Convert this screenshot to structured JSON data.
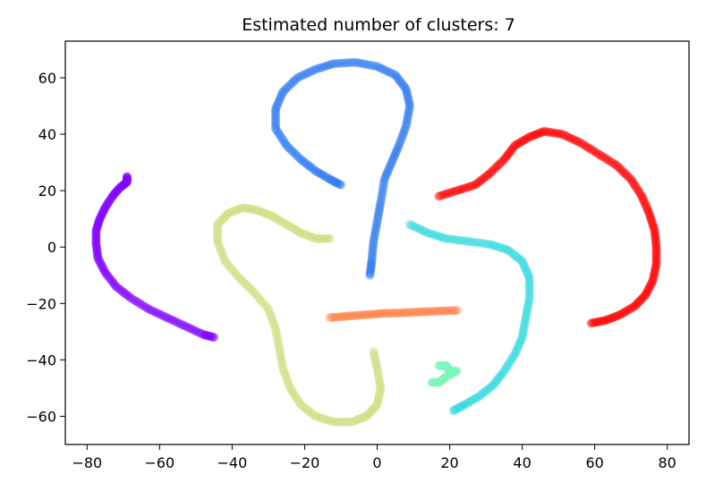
{
  "chart_data": {
    "type": "scatter",
    "title": "Estimated number of clusters: 7",
    "xlabel": "",
    "ylabel": "",
    "xlim": [
      -86,
      86
    ],
    "ylim": [
      -70,
      73
    ],
    "xticks": [
      -80,
      -60,
      -40,
      -20,
      0,
      20,
      40,
      60,
      80
    ],
    "yticks": [
      60,
      40,
      20,
      0,
      -20,
      -40,
      -60
    ],
    "xtick_labels": [
      "−80",
      "−60",
      "−40",
      "−20",
      "0",
      "20",
      "40",
      "60",
      "80"
    ],
    "ytick_labels": [
      "60",
      "40",
      "20",
      "0",
      "−20",
      "−40",
      "−60"
    ],
    "grid": false,
    "series": [
      {
        "color": "#8000ff",
        "points": [
          [
            -69,
            25
          ],
          [
            -69,
            23
          ],
          [
            -71,
            21
          ],
          [
            -73,
            18
          ],
          [
            -75,
            14
          ],
          [
            -76.5,
            10
          ],
          [
            -77.5,
            6
          ],
          [
            -77.5,
            1
          ],
          [
            -77,
            -4
          ],
          [
            -75,
            -9
          ],
          [
            -72,
            -14
          ],
          [
            -68,
            -18
          ],
          [
            -63,
            -22
          ],
          [
            -58,
            -25
          ],
          [
            -53,
            -28
          ],
          [
            -48,
            -31
          ],
          [
            -45,
            -32
          ]
        ]
      },
      {
        "color": "#2e7bef",
        "points": [
          [
            -10,
            22
          ],
          [
            -13,
            24
          ],
          [
            -17,
            27
          ],
          [
            -21,
            31
          ],
          [
            -25,
            36
          ],
          [
            -28,
            42
          ],
          [
            -28,
            49
          ],
          [
            -26,
            55
          ],
          [
            -22,
            60
          ],
          [
            -17,
            63
          ],
          [
            -12,
            65
          ],
          [
            -6,
            65.5
          ],
          [
            0,
            64
          ],
          [
            5,
            61
          ],
          [
            8,
            56
          ],
          [
            9,
            50
          ],
          [
            8,
            43
          ],
          [
            6,
            36
          ],
          [
            4,
            30
          ],
          [
            2,
            24
          ],
          [
            1,
            16
          ],
          [
            0,
            9
          ],
          [
            -1,
            2
          ],
          [
            -1.5,
            -5
          ],
          [
            -2,
            -10
          ]
        ]
      },
      {
        "color": "#38d9dd",
        "points": [
          [
            9,
            8
          ],
          [
            14,
            5
          ],
          [
            19,
            3
          ],
          [
            25,
            2
          ],
          [
            31,
            1
          ],
          [
            36,
            -1
          ],
          [
            40,
            -5
          ],
          [
            42,
            -11
          ],
          [
            42,
            -18
          ],
          [
            41,
            -25
          ],
          [
            40,
            -32
          ],
          [
            38,
            -38
          ],
          [
            35,
            -44
          ],
          [
            32,
            -49
          ],
          [
            28,
            -53
          ],
          [
            24,
            -56
          ],
          [
            21,
            -58
          ]
        ]
      },
      {
        "color": "#7df6b9",
        "points": [
          [
            17,
            -42
          ],
          [
            19,
            -42
          ],
          [
            20,
            -44
          ],
          [
            22,
            -44
          ],
          [
            19,
            -46
          ],
          [
            17,
            -48
          ],
          [
            15,
            -48
          ]
        ]
      },
      {
        "color": "#d1dd82",
        "points": [
          [
            -13,
            3
          ],
          [
            -17,
            3
          ],
          [
            -21,
            5
          ],
          [
            -25,
            8
          ],
          [
            -29,
            11
          ],
          [
            -33,
            13
          ],
          [
            -37,
            14
          ],
          [
            -41,
            12
          ],
          [
            -44,
            8
          ],
          [
            -44,
            2
          ],
          [
            -42,
            -5
          ],
          [
            -38,
            -11
          ],
          [
            -34,
            -16
          ],
          [
            -30,
            -22
          ],
          [
            -28,
            -29
          ],
          [
            -27,
            -36
          ],
          [
            -26,
            -43
          ],
          [
            -24,
            -50
          ],
          [
            -21,
            -56
          ],
          [
            -17,
            -60
          ],
          [
            -12,
            -62
          ],
          [
            -7,
            -62
          ],
          [
            -3,
            -60
          ],
          [
            0,
            -56
          ],
          [
            1,
            -50
          ],
          [
            0,
            -43
          ],
          [
            -1,
            -37
          ]
        ]
      },
      {
        "color": "#ff7e45",
        "points": [
          [
            -13,
            -25
          ],
          [
            -8,
            -24.5
          ],
          [
            -3,
            -24
          ],
          [
            2,
            -23.5
          ],
          [
            7,
            -23.3
          ],
          [
            12,
            -23
          ],
          [
            17,
            -22.7
          ],
          [
            22,
            -22.5
          ]
        ]
      },
      {
        "color": "#ff0000",
        "points": [
          [
            17,
            18
          ],
          [
            22,
            20
          ],
          [
            27,
            22
          ],
          [
            31,
            26
          ],
          [
            35,
            31
          ],
          [
            38,
            36
          ],
          [
            42,
            39
          ],
          [
            46,
            41
          ],
          [
            51,
            40
          ],
          [
            56,
            37
          ],
          [
            61,
            33
          ],
          [
            66,
            29
          ],
          [
            70,
            24
          ],
          [
            73,
            18
          ],
          [
            75,
            12
          ],
          [
            76.5,
            6
          ],
          [
            77,
            0
          ],
          [
            77,
            -6
          ],
          [
            76,
            -12
          ],
          [
            74,
            -17
          ],
          [
            71,
            -21
          ],
          [
            67,
            -24
          ],
          [
            63,
            -26
          ],
          [
            59,
            -27
          ]
        ]
      }
    ]
  }
}
